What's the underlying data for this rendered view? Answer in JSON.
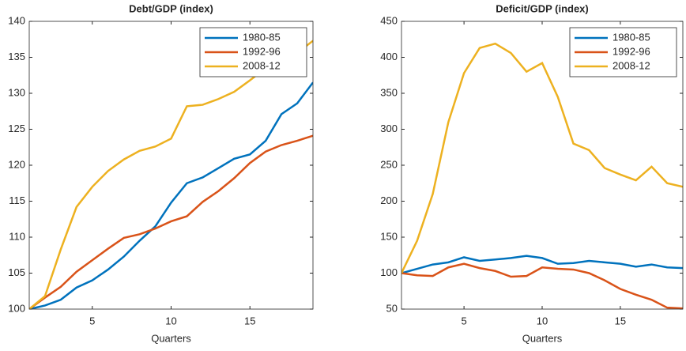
{
  "chart_data": [
    {
      "type": "line",
      "title": "Debt/GDP (index)",
      "xlabel": "Quarters",
      "x": [
        1,
        2,
        3,
        4,
        5,
        6,
        7,
        8,
        9,
        10,
        11,
        12,
        13,
        14,
        15,
        16,
        17,
        18,
        19
      ],
      "xlim": [
        1,
        19
      ],
      "xticks": [
        5,
        10,
        15
      ],
      "ylim": [
        100,
        140
      ],
      "yticks": [
        100,
        105,
        110,
        115,
        120,
        125,
        130,
        135,
        140
      ],
      "legend": "northeast",
      "grid": false,
      "series": [
        {
          "name": "1980-85",
          "color": "#0072bd",
          "values": [
            100,
            100.5,
            101.3,
            103,
            104,
            105.5,
            107.3,
            109.5,
            111.5,
            114.8,
            117.5,
            118.3,
            119.6,
            120.9,
            121.5,
            123.4,
            127.1,
            128.6,
            131.5
          ]
        },
        {
          "name": "1992-96",
          "color": "#d95319",
          "values": [
            100,
            101.6,
            103.1,
            105.2,
            106.8,
            108.4,
            109.9,
            110.4,
            111.2,
            112.2,
            112.9,
            114.9,
            116.4,
            118.2,
            120.3,
            121.9,
            122.8,
            123.4,
            124.1
          ]
        },
        {
          "name": "2008-12",
          "color": "#edb120",
          "values": [
            100,
            101.8,
            108.3,
            114.2,
            117,
            119.2,
            120.8,
            122,
            122.6,
            123.7,
            128.2,
            128.4,
            129.2,
            130.2,
            131.8,
            133.5,
            134.5,
            135.6,
            137.3
          ]
        }
      ]
    },
    {
      "type": "line",
      "title": "Deficit/GDP (index)",
      "xlabel": "Quarters",
      "x": [
        1,
        2,
        3,
        4,
        5,
        6,
        7,
        8,
        9,
        10,
        11,
        12,
        13,
        14,
        15,
        16,
        17,
        18,
        19
      ],
      "xlim": [
        1,
        19
      ],
      "xticks": [
        5,
        10,
        15
      ],
      "ylim": [
        50,
        450
      ],
      "yticks": [
        50,
        100,
        150,
        200,
        250,
        300,
        350,
        400,
        450
      ],
      "legend": "northeast",
      "grid": false,
      "series": [
        {
          "name": "1980-85",
          "color": "#0072bd",
          "values": [
            100,
            106,
            112,
            115,
            122,
            117,
            119,
            121,
            124,
            121,
            113,
            114,
            117,
            115,
            113,
            109,
            112,
            108,
            107
          ]
        },
        {
          "name": "1992-96",
          "color": "#d95319",
          "values": [
            100,
            97,
            96,
            108,
            113,
            107,
            103,
            95,
            96,
            108,
            106,
            105,
            100,
            90,
            78,
            70,
            63,
            52,
            51
          ]
        },
        {
          "name": "2008-12",
          "color": "#edb120",
          "values": [
            100,
            145,
            210,
            310,
            378,
            413,
            419,
            406,
            380,
            392,
            345,
            280,
            271,
            246,
            237,
            229,
            248,
            225,
            220
          ]
        }
      ]
    }
  ]
}
